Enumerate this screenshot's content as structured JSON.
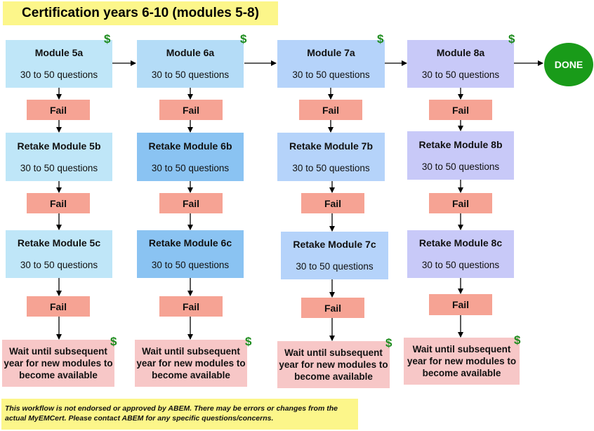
{
  "title": "Certification years 6-10 (modules 5-8)",
  "columns": [
    {
      "color_1": "#bfe6f8",
      "color_2": "#bfe6f8",
      "color_3": "#bfe6f8",
      "m1": "Module 5a",
      "m2": "Retake Module 5b",
      "m3": "Retake Module 5c"
    },
    {
      "color_1": "#b4dcf7",
      "color_2": "#8ac3f2",
      "color_3": "#8ac3f2",
      "m1": "Module 6a",
      "m2": "Retake Module 6b",
      "m3": "Retake Module 6c"
    },
    {
      "color_1": "#b5d3fa",
      "color_2": "#b5d3fa",
      "color_3": "#b5d3fa",
      "m1": "Module 7a",
      "m2": "Retake Module 7b",
      "m3": "Retake Module 7c"
    },
    {
      "color_1": "#c8c9f8",
      "color_2": "#c8c9f8",
      "color_3": "#c8c9f8",
      "m1": "Module 8a",
      "m2": "Retake Module 8b",
      "m3": "Retake Module 8c"
    }
  ],
  "questions_label": "30 to 50 questions",
  "fail_label": "Fail",
  "wait_text": "Wait until subsequent year for new modules to become available",
  "dollar_symbol": "$",
  "done_label": "DONE",
  "done_color": "#199b19",
  "fail_color": "#f6a394",
  "wait_color": "#f7c7c7",
  "dollar_color": "#1e8c1e",
  "disclaimer": "This workflow is not endorsed or approved by ABEM. There may be errors or changes from the actual MyEMCert. Please contact ABEM for any specific questions/concerns."
}
